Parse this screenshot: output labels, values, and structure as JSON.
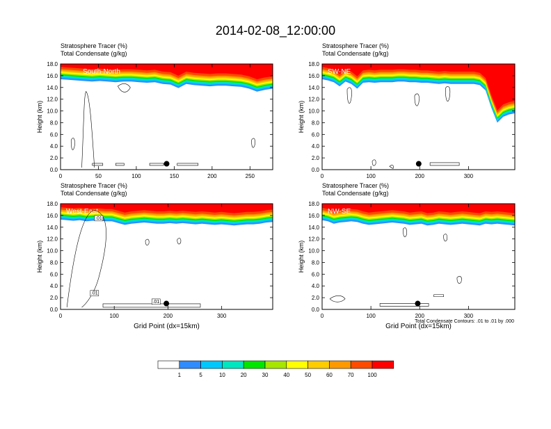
{
  "figure_title": "2014-02-08_12:00:00",
  "colors": {
    "levels": [
      "#ffffff",
      "#2f8cff",
      "#00c8ff",
      "#00e6c0",
      "#00e600",
      "#a6e600",
      "#ffff00",
      "#ffcc00",
      "#ff9900",
      "#ff4a00",
      "#ff0000"
    ],
    "contour": "#000000"
  },
  "legend": {
    "labels": [
      "1",
      "5",
      "10",
      "20",
      "30",
      "40",
      "50",
      "60",
      "70",
      "100"
    ]
  },
  "contour_note": "Total Condensate Contours: .01 to .01 by .000",
  "chart_data": [
    {
      "type": "heatmap",
      "title_line1": "Stratosphere Tracer   (%)",
      "title_line2": "Total Condensate   (g/kg)",
      "overlay_label": "South-North",
      "ylabel": "Height (km)",
      "xlabel": "",
      "xlim": [
        0,
        280
      ],
      "ylim": [
        0,
        18
      ],
      "xticks": [
        "0",
        "50",
        "100",
        "150",
        "200",
        "250"
      ],
      "xtick_values": [
        0,
        50,
        100,
        150,
        200,
        250
      ],
      "yticks": [
        "0.0",
        "2.0",
        "4.0",
        "6.0",
        "8.0",
        "10.0",
        "12.0",
        "14.0",
        "16.0",
        "18.0"
      ],
      "tracer_base_km": [
        15.4,
        15.3,
        15.2,
        15.1,
        15.0,
        15.1,
        15.0,
        14.9,
        15.0,
        15.0,
        14.9,
        14.8,
        14.9,
        14.6,
        14.5,
        13.9,
        14.6,
        14.4,
        14.3,
        14.2,
        14.3,
        14.3,
        14.2,
        14.1,
        13.8,
        13.3,
        13.6,
        13.8
      ],
      "marker_x": 140,
      "marker_y": 1.0
    },
    {
      "type": "heatmap",
      "title_line1": "Stratosphere Tracer   (%)",
      "title_line2": "Total Condensate   (g/kg)",
      "overlay_label": "SW-NE",
      "ylabel": "Height (km)",
      "xlabel": "",
      "xlim": [
        0,
        395
      ],
      "ylim": [
        0,
        18
      ],
      "xticks": [
        "0",
        "100",
        "200",
        "300"
      ],
      "xtick_values": [
        0,
        100,
        200,
        300
      ],
      "yticks": [
        "0.0",
        "2.0",
        "4.0",
        "6.0",
        "8.0",
        "10.0",
        "12.0",
        "14.0",
        "16.0",
        "18.0"
      ],
      "tracer_base_km": [
        15.4,
        15.2,
        14.9,
        14.2,
        15.0,
        14.6,
        13.8,
        14.8,
        14.9,
        14.8,
        14.9,
        14.9,
        14.9,
        15.0,
        15.0,
        14.9,
        14.9,
        14.8,
        14.8,
        14.7,
        14.6,
        14.7,
        14.6,
        14.6,
        14.6,
        14.6,
        14.6,
        14.4,
        13.5,
        10.5,
        8.0,
        9.0,
        9.4,
        9.6
      ],
      "marker_x": 198,
      "marker_y": 1.0
    },
    {
      "type": "heatmap",
      "title_line1": "Stratosphere Tracer   (%)",
      "title_line2": "Total Condensate   (g/kg)",
      "overlay_label": "West-East",
      "ylabel": "Height (km)",
      "xlabel": "Grid Point (dx=15km)",
      "xlim": [
        0,
        395
      ],
      "ylim": [
        0,
        18
      ],
      "xticks": [
        "0",
        "100",
        "200",
        "300"
      ],
      "xtick_values": [
        0,
        100,
        200,
        300
      ],
      "yticks": [
        "0.0",
        "2.0",
        "4.0",
        "6.0",
        "8.0",
        "10.0",
        "12.0",
        "14.0",
        "16.0",
        "18.0"
      ],
      "tracer_base_km": [
        15.3,
        15.2,
        15.1,
        15.2,
        15.0,
        15.1,
        15.1,
        15.0,
        15.0,
        14.7,
        14.4,
        14.6,
        14.7,
        14.8,
        14.7,
        14.6,
        14.6,
        14.7,
        14.6,
        14.7,
        14.6,
        14.5,
        14.6,
        14.5,
        14.4,
        14.5,
        14.4,
        14.3,
        14.4,
        14.5,
        14.5,
        14.6,
        14.8,
        14.9
      ],
      "marker_x": 197,
      "marker_y": 1.0,
      "contour_labels": [
        ".01",
        ".01",
        ".01"
      ]
    },
    {
      "type": "heatmap",
      "title_line1": "Stratosphere Tracer   (%)",
      "title_line2": "Total Condensate   (g/kg)",
      "overlay_label": "NW-SE",
      "ylabel": "Height (km)",
      "xlabel": "Grid Point (dx=15km)",
      "xlim": [
        0,
        395
      ],
      "ylim": [
        0,
        18
      ],
      "xticks": [
        "0",
        "100",
        "200",
        "300"
      ],
      "xtick_values": [
        0,
        100,
        200,
        300
      ],
      "yticks": [
        "0.0",
        "2.0",
        "4.0",
        "6.0",
        "8.0",
        "10.0",
        "12.0",
        "14.0",
        "16.0",
        "18.0"
      ],
      "tracer_base_km": [
        15.2,
        15.0,
        14.6,
        14.8,
        14.9,
        15.0,
        14.9,
        14.6,
        14.4,
        14.5,
        14.6,
        14.7,
        14.8,
        14.7,
        14.6,
        14.4,
        14.5,
        14.6,
        14.3,
        14.4,
        14.6,
        14.5,
        14.4,
        14.5,
        14.6,
        14.5,
        14.4,
        14.3,
        14.6,
        14.5,
        14.6,
        14.5,
        14.4,
        14.3
      ],
      "marker_x": 196,
      "marker_y": 1.0
    }
  ]
}
